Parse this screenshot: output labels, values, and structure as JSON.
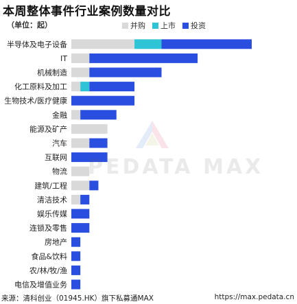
{
  "header": {
    "title": "本周整体事件行业案例数量对比",
    "unit": "（单位：起）"
  },
  "legend": [
    {
      "label": "并购",
      "color": "#d9d9d9"
    },
    {
      "label": "上市",
      "color": "#2ec4d6"
    },
    {
      "label": "投资",
      "color": "#2a4fe0"
    }
  ],
  "watermark": {
    "text": "PEDATA MAX"
  },
  "footer": {
    "source": "来源：清科创业（01945.HK）旗下私募通MAX",
    "url": "https://max.pedata.cn"
  },
  "chart_data": {
    "type": "bar",
    "orientation": "horizontal",
    "stacked": true,
    "categories": [
      "半导体及电子设备",
      "IT",
      "机械制造",
      "化工原料及加工",
      "生物技术/医疗健康",
      "金融",
      "能源及矿产",
      "汽车",
      "互联网",
      "物流",
      "建筑/工程",
      "清洁技术",
      "娱乐传媒",
      "连锁及零售",
      "房地产",
      "食品&饮料",
      "农/林/牧/渔",
      "电信及增值业务"
    ],
    "series": [
      {
        "name": "并购",
        "color": "#d9d9d9",
        "values": [
          7,
          2,
          2,
          1,
          0,
          1,
          4,
          2,
          0,
          2,
          2,
          1,
          0,
          0,
          0,
          0,
          0,
          0
        ]
      },
      {
        "name": "上市",
        "color": "#2ec4d6",
        "values": [
          3,
          0,
          0,
          1,
          0,
          0,
          0,
          0,
          0,
          0,
          0,
          0,
          0,
          0,
          0,
          0,
          0,
          0
        ]
      },
      {
        "name": "投资",
        "color": "#2a4fe0",
        "values": [
          10,
          12,
          8,
          5,
          7,
          4,
          0,
          2,
          4,
          0,
          1,
          1,
          2,
          2,
          1,
          1,
          1,
          1
        ]
      }
    ],
    "xlim": [
      0,
      20
    ],
    "grid": false,
    "legend_position": "top"
  }
}
